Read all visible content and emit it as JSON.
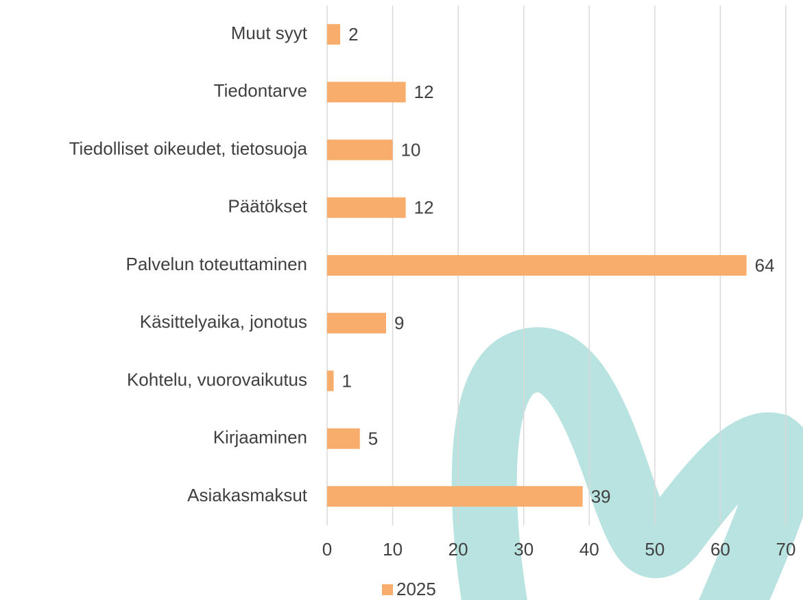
{
  "chart_data": {
    "type": "bar",
    "orientation": "horizontal",
    "categories": [
      "Muut syyt",
      "Tiedontarve",
      "Tiedolliset oikeudet, tietosuoja",
      "Päätökset",
      "Palvelun toteuttaminen",
      "Käsittelyaika, jonotus",
      "Kohtelu, vuorovaikutus",
      "Kirjaaminen",
      "Asiakasmaksut"
    ],
    "series": [
      {
        "name": "2025",
        "color": "#f8ad6d",
        "values": [
          2,
          12,
          10,
          12,
          64,
          9,
          1,
          5,
          39
        ]
      }
    ],
    "xlim": [
      0,
      70
    ],
    "xticks": [
      0,
      10,
      20,
      30,
      40,
      50,
      60,
      70
    ],
    "grid": true,
    "legend": "bottom"
  }
}
